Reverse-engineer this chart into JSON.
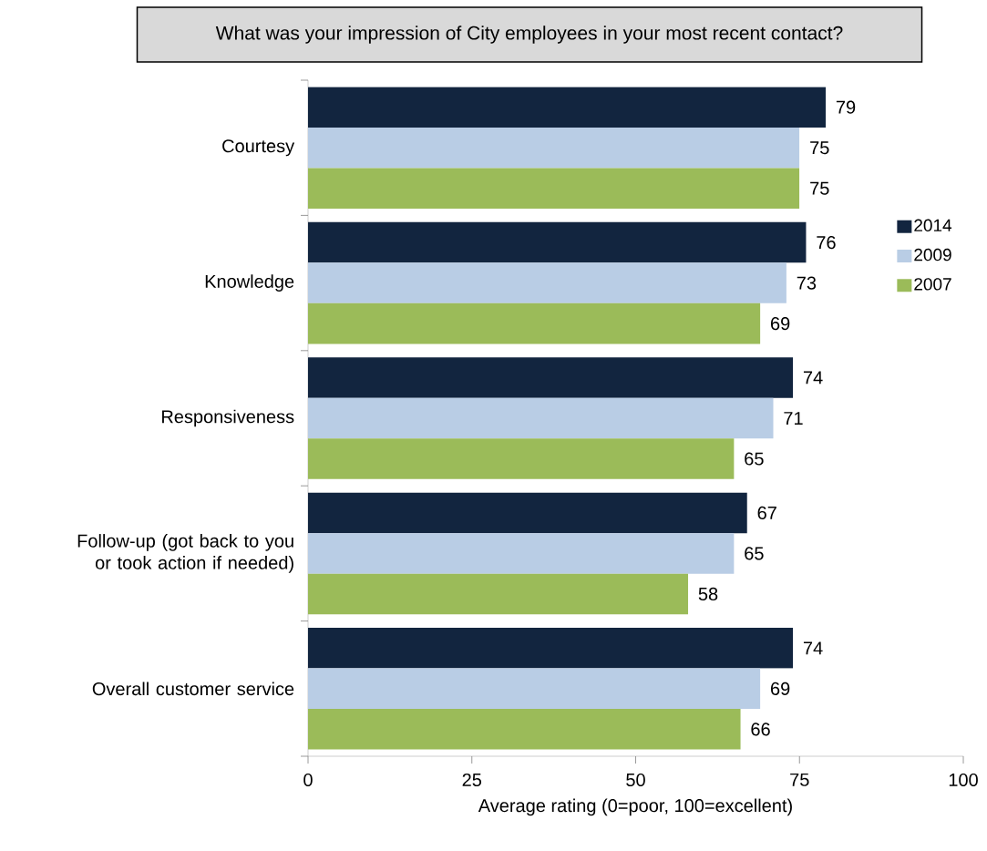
{
  "chart_data": {
    "type": "bar",
    "orientation": "horizontal",
    "title": "What was your impression of City employees in your most recent contact?",
    "xlabel": "Average rating (0=poor, 100=excellent)",
    "categories": [
      "Courtesy",
      "Knowledge",
      "Responsiveness",
      "Follow-up (got back to you or took action if needed)",
      "Overall customer service"
    ],
    "series": [
      {
        "name": "2014",
        "color": "#12253f",
        "values": [
          79,
          76,
          74,
          67,
          74
        ]
      },
      {
        "name": "2009",
        "color": "#b9cde5",
        "values": [
          75,
          73,
          71,
          65,
          69
        ]
      },
      {
        "name": "2007",
        "color": "#9bbb59",
        "values": [
          75,
          69,
          65,
          58,
          66
        ]
      }
    ],
    "xlim": [
      0,
      100
    ],
    "xticks": [
      0,
      25,
      50,
      75,
      100
    ],
    "data_labels": true,
    "legend": "right"
  }
}
